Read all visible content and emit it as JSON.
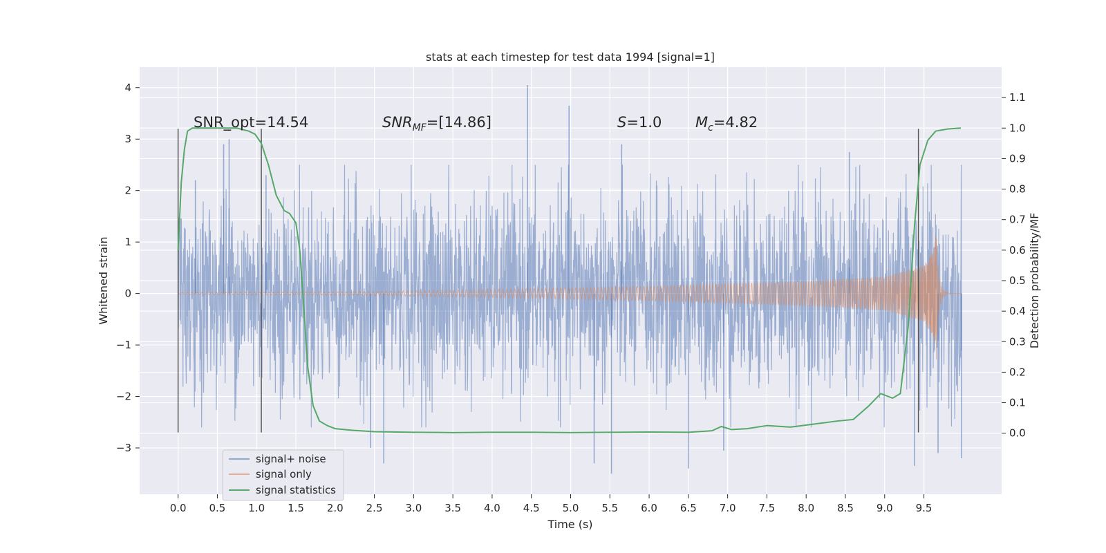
{
  "chart_data": {
    "type": "line",
    "title": "stats at each timestep for test data 1994 [signal=1]",
    "xlabel": "Time (s)",
    "ylabel": "Whitened strain",
    "ylabel_right": "Detection probability/MF",
    "xlim": [
      -0.49,
      10.49
    ],
    "ylim": [
      -3.9,
      4.4
    ],
    "ylim_right": [
      -0.2,
      1.2
    ],
    "x_ticks": [
      "0.0",
      "0.5",
      "1.0",
      "1.5",
      "2.0",
      "2.5",
      "3.0",
      "3.5",
      "4.0",
      "4.5",
      "5.0",
      "5.5",
      "6.0",
      "6.5",
      "7.0",
      "7.5",
      "8.0",
      "8.5",
      "9.0",
      "9.5"
    ],
    "y_ticks": [
      "−3",
      "−2",
      "−1",
      "0",
      "1",
      "2",
      "3",
      "4"
    ],
    "y_right_ticks": [
      "0.0",
      "0.1",
      "0.2",
      "0.3",
      "0.4",
      "0.5",
      "0.6",
      "0.7",
      "0.8",
      "0.9",
      "1.0",
      "1.1"
    ],
    "grid": true,
    "legend_position": "lower-left",
    "annotations": {
      "snr_opt": "SNR_opt=14.54",
      "snr_mf_base": "SNR",
      "snr_mf_sub": "MF",
      "snr_mf_value": "=[14.86]",
      "s_base": "S",
      "s_value": "=1.0",
      "mc_base": "M",
      "mc_sub": "c",
      "mc_value": "=4.82"
    },
    "vertical_lines": [
      0.0,
      1.06,
      9.43
    ],
    "vertical_line_range": [
      -2.7,
      3.2
    ],
    "series": [
      {
        "name": "signal+ noise",
        "color": "#4c72b0",
        "noise_band_std": 0.95,
        "notable_peaks": [
          [
            0.22,
            2.2
          ],
          [
            0.58,
            2.9
          ],
          [
            0.65,
            3.0
          ],
          [
            1.12,
            2.3
          ],
          [
            2.45,
            -3.0
          ],
          [
            2.62,
            -3.3
          ],
          [
            4.45,
            4.05
          ],
          [
            4.98,
            3.65
          ],
          [
            5.3,
            -3.3
          ],
          [
            5.52,
            -3.5
          ],
          [
            5.65,
            2.9
          ],
          [
            6.5,
            -3.4
          ],
          [
            6.95,
            -3.05
          ],
          [
            8.55,
            2.75
          ],
          [
            9.38,
            -3.35
          ],
          [
            9.68,
            -3.1
          ],
          [
            9.98,
            -3.2
          ]
        ]
      },
      {
        "name": "signal only",
        "color": "#dd8452",
        "chirp_start": 0.0,
        "chirp_merger": 9.66,
        "chirp_end": 9.98,
        "amp_points": [
          [
            0.0,
            0.02
          ],
          [
            2.0,
            0.03
          ],
          [
            4.0,
            0.08
          ],
          [
            6.0,
            0.14
          ],
          [
            8.0,
            0.24
          ],
          [
            9.0,
            0.33
          ],
          [
            9.5,
            0.55
          ],
          [
            9.62,
            0.85
          ],
          [
            9.66,
            1.3
          ]
        ]
      },
      {
        "name": "signal statistics",
        "color": "#55a868",
        "axis": "right",
        "x": [
          0.0,
          0.04,
          0.08,
          0.12,
          0.18,
          0.3,
          0.5,
          0.75,
          0.9,
          0.98,
          1.06,
          1.15,
          1.25,
          1.35,
          1.42,
          1.5,
          1.55,
          1.6,
          1.65,
          1.72,
          1.8,
          1.9,
          2.0,
          2.2,
          2.5,
          3.0,
          3.5,
          4.0,
          4.5,
          5.0,
          5.5,
          6.0,
          6.5,
          6.8,
          6.92,
          7.05,
          7.25,
          7.5,
          7.8,
          8.1,
          8.4,
          8.6,
          8.8,
          8.95,
          9.1,
          9.2,
          9.3,
          9.38,
          9.45,
          9.55,
          9.65,
          9.8,
          9.97
        ],
        "y": [
          0.6,
          0.82,
          0.93,
          0.99,
          1.0,
          1.0,
          1.0,
          1.0,
          0.99,
          0.98,
          0.95,
          0.88,
          0.78,
          0.73,
          0.72,
          0.69,
          0.6,
          0.42,
          0.22,
          0.09,
          0.04,
          0.025,
          0.015,
          0.01,
          0.005,
          0.003,
          0.002,
          0.003,
          0.003,
          0.002,
          0.003,
          0.004,
          0.003,
          0.008,
          0.022,
          0.012,
          0.015,
          0.025,
          0.02,
          0.03,
          0.04,
          0.045,
          0.09,
          0.13,
          0.115,
          0.13,
          0.35,
          0.68,
          0.88,
          0.96,
          0.99,
          0.997,
          1.0
        ]
      }
    ],
    "legend": [
      "signal+ noise",
      "signal only",
      "signal statistics"
    ]
  }
}
